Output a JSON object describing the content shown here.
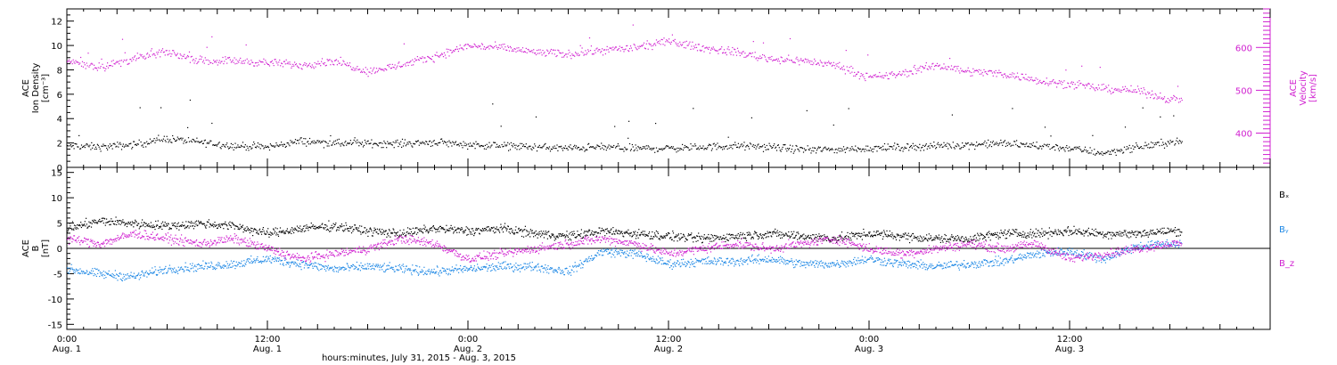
{
  "colors": {
    "black": "#000000",
    "magenta": "#d020d0",
    "blue": "#1e88e5",
    "background": "#ffffff"
  },
  "x_axis": {
    "title": "hours:minutes, July 31, 2015 - Aug.  3, 2015",
    "tick_labels": [
      {
        "t": 0,
        "time": "0:00",
        "date": "Aug. 1"
      },
      {
        "t": 12,
        "time": "12:00",
        "date": "Aug. 1"
      },
      {
        "t": 24,
        "time": "0:00",
        "date": "Aug. 2"
      },
      {
        "t": 36,
        "time": "12:00",
        "date": "Aug. 2"
      },
      {
        "t": 48,
        "time": "0:00",
        "date": "Aug. 3"
      },
      {
        "t": 60,
        "time": "12:00",
        "date": "Aug. 3"
      }
    ]
  },
  "chart_data": [
    {
      "type": "scatter",
      "panel": "top",
      "xlim": [
        0,
        72
      ],
      "data_end_hour": 66.7,
      "left_axis": {
        "label_lines": [
          "ACE",
          "Ion Density",
          "[cm⁻³]"
        ],
        "ylim": [
          0,
          13
        ],
        "ticks": [
          "0",
          "2",
          "4",
          "6",
          "8",
          "10",
          "12"
        ]
      },
      "right_axis": {
        "label_lines": [
          "ACE",
          "Velocity",
          "[km/s]"
        ],
        "ylim": [
          320,
          690
        ],
        "ticks": [
          "400",
          "500",
          "600"
        ]
      },
      "series": [
        {
          "axis": "left",
          "color": "#000000",
          "x": [
            0,
            2,
            4,
            6,
            8,
            10,
            12,
            14,
            16,
            18,
            20,
            22,
            24,
            26,
            28,
            30,
            32,
            34,
            36,
            38,
            40,
            42,
            44,
            46,
            48,
            50,
            52,
            54,
            56,
            58,
            60,
            62,
            64,
            66
          ],
          "y": [
            1.8,
            1.7,
            1.9,
            2.4,
            2.1,
            1.8,
            1.7,
            2.2,
            2.0,
            2.0,
            2.0,
            2.1,
            1.9,
            1.8,
            1.7,
            1.6,
            1.7,
            1.6,
            1.6,
            1.7,
            1.8,
            1.7,
            1.5,
            1.5,
            1.6,
            1.7,
            1.8,
            1.9,
            2.0,
            1.8,
            1.6,
            1.2,
            1.7,
            2.1
          ]
        },
        {
          "axis": "right",
          "color": "#d020d0",
          "x": [
            0,
            2,
            4,
            6,
            8,
            10,
            12,
            14,
            16,
            18,
            20,
            22,
            24,
            26,
            28,
            30,
            32,
            34,
            36,
            38,
            40,
            42,
            44,
            46,
            48,
            50,
            52,
            54,
            56,
            58,
            60,
            62,
            64,
            66
          ],
          "y": [
            570,
            555,
            575,
            590,
            570,
            570,
            565,
            560,
            570,
            545,
            560,
            580,
            605,
            600,
            590,
            585,
            595,
            600,
            615,
            600,
            590,
            575,
            570,
            560,
            530,
            540,
            560,
            545,
            540,
            525,
            515,
            505,
            500,
            480
          ]
        }
      ]
    },
    {
      "type": "scatter",
      "panel": "bottom",
      "xlim": [
        0,
        72
      ],
      "data_end_hour": 66.7,
      "left_axis": {
        "label_lines": [
          "ACE",
          "B",
          "[nT]"
        ],
        "ylim": [
          -16,
          16
        ],
        "ticks": [
          "-15",
          "-10",
          "-5",
          "0",
          "5",
          "10",
          "15"
        ]
      },
      "legend_position": "right",
      "series": [
        {
          "name": "Bₓ",
          "color": "#000000",
          "x": [
            0,
            2,
            4,
            6,
            8,
            10,
            12,
            14,
            16,
            18,
            20,
            22,
            24,
            26,
            28,
            30,
            32,
            34,
            36,
            38,
            40,
            42,
            44,
            46,
            48,
            50,
            52,
            54,
            56,
            58,
            60,
            62,
            64,
            66
          ],
          "y": [
            4,
            5.5,
            5,
            4.5,
            5,
            4.5,
            3,
            4,
            4.5,
            3.5,
            3,
            4,
            3.5,
            4,
            3,
            2.5,
            3.5,
            3,
            2.5,
            2,
            2.5,
            3,
            2.5,
            2,
            3,
            2.5,
            2,
            2,
            3,
            3,
            3.5,
            3,
            3,
            3.5
          ]
        },
        {
          "name": "Bᵧ",
          "color": "#1e88e5",
          "x": [
            0,
            2,
            4,
            6,
            8,
            10,
            12,
            14,
            16,
            18,
            20,
            22,
            24,
            26,
            28,
            30,
            32,
            34,
            36,
            38,
            40,
            42,
            44,
            46,
            48,
            50,
            52,
            54,
            56,
            58,
            60,
            62,
            64,
            66
          ],
          "y": [
            -4,
            -5,
            -5.5,
            -4,
            -3.5,
            -3,
            -2,
            -3,
            -4,
            -3.5,
            -4,
            -4.5,
            -4,
            -3.5,
            -3.5,
            -4.5,
            -0.5,
            -1,
            -3,
            -2.5,
            -2.5,
            -2,
            -3,
            -3,
            -2,
            -3,
            -3.5,
            -3,
            -2.5,
            -1,
            -0.5,
            -2,
            0.5,
            1
          ]
        },
        {
          "name": "B_z",
          "color": "#d020d0",
          "x": [
            0,
            2,
            4,
            6,
            8,
            10,
            12,
            14,
            16,
            18,
            20,
            22,
            24,
            26,
            28,
            30,
            32,
            34,
            36,
            38,
            40,
            42,
            44,
            46,
            48,
            50,
            52,
            54,
            56,
            58,
            60,
            62,
            64,
            66
          ],
          "y": [
            2,
            1,
            3,
            2,
            1,
            2,
            0,
            -2,
            -1,
            0,
            2,
            1,
            -2,
            -1,
            0,
            1,
            2,
            1,
            -1,
            0,
            1,
            0,
            1,
            2,
            0,
            -1,
            0,
            1,
            0,
            1,
            -2,
            -1,
            0,
            1
          ]
        }
      ]
    }
  ]
}
